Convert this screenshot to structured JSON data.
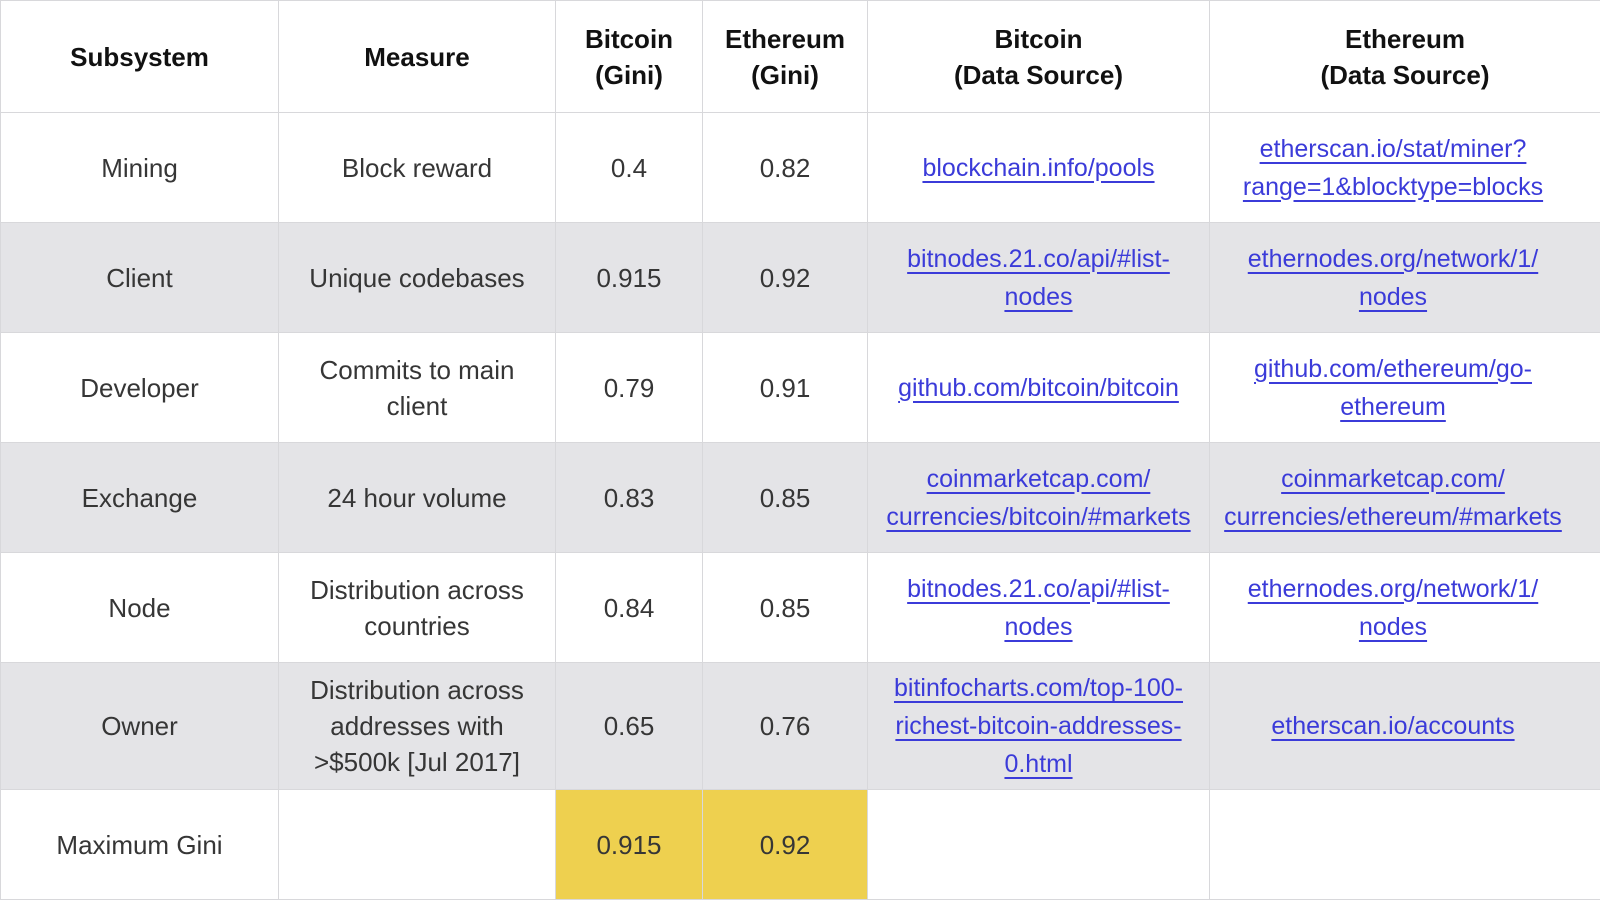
{
  "colors": {
    "highlight_yellow": "#EED04F",
    "zebra_gray": "#E4E4E7",
    "link_blue": "#3B3BD9",
    "border_gray": "#D8D8DB",
    "text_dark": "#363636",
    "text_black": "#111111"
  },
  "table": {
    "headers": [
      {
        "line1": "Subsystem",
        "line2": ""
      },
      {
        "line1": "Measure",
        "line2": ""
      },
      {
        "line1": "Bitcoin",
        "line2": "(Gini)"
      },
      {
        "line1": "Ethereum",
        "line2": "(Gini)"
      },
      {
        "line1": "Bitcoin",
        "line2": "(Data Source)"
      },
      {
        "line1": "Ethereum",
        "line2": "(Data Source)"
      }
    ],
    "rows": [
      {
        "subsystem": "Mining",
        "measure": "Block reward",
        "bitcoin_gini": "0.4",
        "ethereum_gini": "0.82",
        "bitcoin_source": "blockchain.info/pools",
        "ethereum_source": "etherscan.io/stat/miner?range=1&blocktype=blocks"
      },
      {
        "subsystem": "Client",
        "measure": "Unique codebases",
        "bitcoin_gini": "0.915",
        "ethereum_gini": "0.92",
        "bitcoin_source": "bitnodes.21.co/api/#list-nodes",
        "ethereum_source": "ethernodes.org/network/1/nodes"
      },
      {
        "subsystem": "Developer",
        "measure": "Commits to main client",
        "bitcoin_gini": "0.79",
        "ethereum_gini": "0.91",
        "bitcoin_source": "github.com/bitcoin/bitcoin",
        "ethereum_source": "github.com/ethereum/go-ethereum"
      },
      {
        "subsystem": "Exchange",
        "measure": "24 hour volume",
        "bitcoin_gini": "0.83",
        "ethereum_gini": "0.85",
        "bitcoin_source": "coinmarketcap.com/currencies/bitcoin/#markets",
        "ethereum_source": "coinmarketcap.com/currencies/ethereum/#markets"
      },
      {
        "subsystem": "Node",
        "measure": "Distribution across countries",
        "bitcoin_gini": "0.84",
        "ethereum_gini": "0.85",
        "bitcoin_source": "bitnodes.21.co/api/#list-nodes",
        "ethereum_source": "ethernodes.org/network/1/nodes"
      },
      {
        "subsystem": "Owner",
        "measure": "Distribution across addresses with >$500k [Jul 2017]",
        "bitcoin_gini": "0.65",
        "ethereum_gini": "0.76",
        "bitcoin_source": "bitinfocharts.com/top-100-richest-bitcoin-addresses-0.html",
        "ethereum_source": "etherscan.io/accounts"
      }
    ],
    "footer_row": {
      "label": "Maximum Gini",
      "bitcoin_gini": "0.915",
      "ethereum_gini": "0.92"
    }
  },
  "chart_data": {
    "type": "table",
    "columns": [
      "Subsystem",
      "Measure",
      "Bitcoin (Gini)",
      "Ethereum (Gini)",
      "Bitcoin (Data Source)",
      "Ethereum (Data Source)"
    ],
    "rows": [
      [
        "Mining",
        "Block reward",
        0.4,
        0.82,
        "blockchain.info/pools",
        "etherscan.io/stat/miner?range=1&blocktype=blocks"
      ],
      [
        "Client",
        "Unique codebases",
        0.915,
        0.92,
        "bitnodes.21.co/api/#list-nodes",
        "ethernodes.org/network/1/nodes"
      ],
      [
        "Developer",
        "Commits to main client",
        0.79,
        0.91,
        "github.com/bitcoin/bitcoin",
        "github.com/ethereum/go-ethereum"
      ],
      [
        "Exchange",
        "24 hour volume",
        0.83,
        0.85,
        "coinmarketcap.com/currencies/bitcoin/#markets",
        "coinmarketcap.com/currencies/ethereum/#markets"
      ],
      [
        "Node",
        "Distribution across countries",
        0.84,
        0.85,
        "bitnodes.21.co/api/#list-nodes",
        "ethernodes.org/network/1/nodes"
      ],
      [
        "Owner",
        "Distribution across addresses with >$500k [Jul 2017]",
        0.65,
        0.76,
        "bitinfocharts.com/top-100-richest-bitcoin-addresses-0.html",
        "etherscan.io/accounts"
      ]
    ],
    "footer": [
      "Maximum Gini",
      "",
      0.915,
      0.92,
      "",
      ""
    ],
    "layout_hints": {
      "zebra_striping": true,
      "highlighted_cells": "footer Bitcoin and Ethereum Gini values in yellow",
      "link_columns": [
        4,
        5
      ]
    }
  }
}
